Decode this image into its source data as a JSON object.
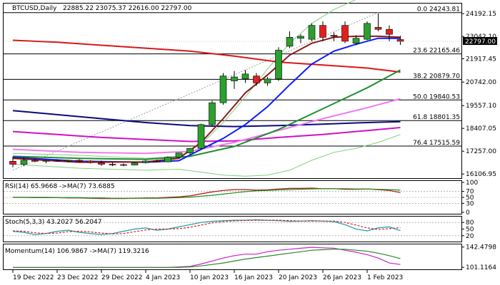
{
  "colors": {
    "frame": "#000000",
    "bull": "#2ca02c",
    "bear": "#e02020",
    "blue_ma": "#0a1aff",
    "red_ma": "#d81818",
    "green_ma": "#1f8f2f",
    "navy_ma": "#0a0a7a",
    "magenta_ma": "#d010c8",
    "pink_ma": "#f07af0",
    "brown_ma": "#8a1a1a",
    "band": "#7fcf7f",
    "fib": "#000000",
    "rsi": "#b01010",
    "rsi_ma": "#1c8c1c",
    "stoch_k": "#1a9aa8",
    "stoch_d": "#d02020",
    "mom": "#d020c8",
    "mom_ma": "#2a8a2a"
  },
  "chart_data": [
    {
      "type": "candlestick",
      "title": "BTCUSD,Daily",
      "ohlc_header": "22885.22 23075.37 22616.00 22797.00",
      "last_price_label": "22797.00",
      "ylim": [
        15900,
        24700
      ],
      "yticks": [
        "24192.15",
        "23042.10",
        "21917.45",
        "20742.00",
        "19557.10",
        "18407.05",
        "17257.00",
        "16106.95"
      ],
      "ytick_values": [
        24192.15,
        23042.1,
        21917.45,
        20742.0,
        19557.1,
        18407.05,
        17257.0,
        16106.95
      ],
      "xlabels": [
        "19 Dec 2022",
        "23 Dec 2022",
        "29 Dec 2022",
        "4 Jan 2023",
        "10 Jan 2023",
        "16 Jan 2023",
        "20 Jan 2023",
        "26 Jan 2023",
        "1 Feb 2023"
      ],
      "xlabel_bars": [
        0,
        4,
        8,
        12,
        16,
        20,
        24,
        28,
        32
      ],
      "candles": [
        {
          "o": 16750,
          "h": 16980,
          "l": 16450,
          "c": 16600
        },
        {
          "o": 16600,
          "h": 16950,
          "l": 16500,
          "c": 16800
        },
        {
          "o": 16800,
          "h": 16880,
          "l": 16700,
          "c": 16750
        },
        {
          "o": 16750,
          "h": 16830,
          "l": 16650,
          "c": 16790
        },
        {
          "o": 16790,
          "h": 16850,
          "l": 16720,
          "c": 16760
        },
        {
          "o": 16760,
          "h": 16820,
          "l": 16700,
          "c": 16800
        },
        {
          "o": 16800,
          "h": 16850,
          "l": 16720,
          "c": 16760
        },
        {
          "o": 16760,
          "h": 16800,
          "l": 16640,
          "c": 16680
        },
        {
          "o": 16680,
          "h": 16780,
          "l": 16520,
          "c": 16600
        },
        {
          "o": 16600,
          "h": 16700,
          "l": 16500,
          "c": 16580
        },
        {
          "o": 16580,
          "h": 16650,
          "l": 16500,
          "c": 16560
        },
        {
          "o": 16560,
          "h": 16720,
          "l": 16540,
          "c": 16680
        },
        {
          "o": 16680,
          "h": 16820,
          "l": 16640,
          "c": 16760
        },
        {
          "o": 16760,
          "h": 16830,
          "l": 16700,
          "c": 16720
        },
        {
          "o": 16720,
          "h": 17000,
          "l": 16700,
          "c": 16950
        },
        {
          "o": 16950,
          "h": 17180,
          "l": 16900,
          "c": 17170
        },
        {
          "o": 17170,
          "h": 17420,
          "l": 17100,
          "c": 17400
        },
        {
          "o": 17400,
          "h": 18650,
          "l": 17350,
          "c": 18600
        },
        {
          "o": 18600,
          "h": 19800,
          "l": 18500,
          "c": 19700
        },
        {
          "o": 19700,
          "h": 21200,
          "l": 19600,
          "c": 21050
        },
        {
          "o": 20800,
          "h": 21300,
          "l": 20400,
          "c": 21000
        },
        {
          "o": 20900,
          "h": 21350,
          "l": 20700,
          "c": 21150
        },
        {
          "o": 21050,
          "h": 21200,
          "l": 20550,
          "c": 20700
        },
        {
          "o": 20700,
          "h": 21000,
          "l": 20550,
          "c": 20900
        },
        {
          "o": 20900,
          "h": 22500,
          "l": 20800,
          "c": 22350
        },
        {
          "o": 22550,
          "h": 23300,
          "l": 22450,
          "c": 23000
        },
        {
          "o": 22950,
          "h": 23150,
          "l": 22700,
          "c": 23050
        },
        {
          "o": 22900,
          "h": 23700,
          "l": 22800,
          "c": 23600
        },
        {
          "o": 23600,
          "h": 23800,
          "l": 22800,
          "c": 23000
        },
        {
          "o": 23100,
          "h": 23250,
          "l": 22800,
          "c": 23050
        },
        {
          "o": 23600,
          "h": 23800,
          "l": 22700,
          "c": 22800
        },
        {
          "o": 22700,
          "h": 23100,
          "l": 22600,
          "c": 22950
        },
        {
          "o": 22900,
          "h": 23800,
          "l": 22850,
          "c": 23700
        },
        {
          "o": 23500,
          "h": 24200,
          "l": 23300,
          "c": 23400
        },
        {
          "o": 23400,
          "h": 23600,
          "l": 22800,
          "c": 23150
        },
        {
          "o": 22885.22,
          "h": 23075.37,
          "l": 22616.0,
          "c": 22797.0
        }
      ],
      "fib_levels": [
        {
          "label": "0.0 24243.81",
          "value": 24243.81
        },
        {
          "label": "23.6 22165.46",
          "value": 22165.46
        },
        {
          "label": "38.2 20879.70",
          "value": 20879.7
        },
        {
          "label": "50.0 19840.53",
          "value": 19840.53
        },
        {
          "label": "61.8 18801.35",
          "value": 18801.35
        },
        {
          "label": "76.4 17515.59",
          "value": 17515.59
        }
      ],
      "trendline": {
        "from": [
          0,
          16300
        ],
        "to": [
          33,
          24243.81
        ]
      },
      "moving_averages": [
        {
          "color_key": "red_ma",
          "points": [
            [
              0,
              22850
            ],
            [
              4,
              22750
            ],
            [
              8,
              22600
            ],
            [
              12,
              22450
            ],
            [
              16,
              22300
            ],
            [
              20,
              22050
            ],
            [
              24,
              21750
            ],
            [
              28,
              21600
            ],
            [
              32,
              21450
            ],
            [
              35,
              21250
            ]
          ]
        },
        {
          "color_key": "navy_ma",
          "points": [
            [
              0,
              19300
            ],
            [
              4,
              19100
            ],
            [
              8,
              18900
            ],
            [
              12,
              18700
            ],
            [
              16,
              18550
            ],
            [
              20,
              18500
            ],
            [
              24,
              18550
            ],
            [
              28,
              18620
            ],
            [
              32,
              18700
            ],
            [
              35,
              18750
            ]
          ]
        },
        {
          "color_key": "magenta_ma",
          "points": [
            [
              0,
              18250
            ],
            [
              4,
              18100
            ],
            [
              8,
              17950
            ],
            [
              12,
              17850
            ],
            [
              16,
              17750
            ],
            [
              20,
              17780
            ],
            [
              24,
              17950
            ],
            [
              28,
              18100
            ],
            [
              32,
              18300
            ],
            [
              35,
              18450
            ]
          ]
        },
        {
          "color_key": "pink_ma",
          "points": [
            [
              0,
              17350
            ],
            [
              6,
              17200
            ],
            [
              12,
              17150
            ],
            [
              16,
              17250
            ],
            [
              20,
              17700
            ],
            [
              24,
              18300
            ],
            [
              28,
              18900
            ],
            [
              32,
              19450
            ],
            [
              35,
              19900
            ]
          ]
        },
        {
          "color_key": "green_ma",
          "points": [
            [
              0,
              17000
            ],
            [
              6,
              16900
            ],
            [
              12,
              16850
            ],
            [
              16,
              17000
            ],
            [
              20,
              17500
            ],
            [
              24,
              18350
            ],
            [
              28,
              19400
            ],
            [
              32,
              20450
            ],
            [
              35,
              21350
            ]
          ]
        },
        {
          "color_key": "blue_ma",
          "points": [
            [
              0,
              16950
            ],
            [
              6,
              16750
            ],
            [
              12,
              16700
            ],
            [
              15,
              16780
            ],
            [
              17,
              17350
            ],
            [
              19,
              17900
            ],
            [
              21,
              18600
            ],
            [
              23,
              19500
            ],
            [
              25,
              20600
            ],
            [
              27,
              21650
            ],
            [
              29,
              22300
            ],
            [
              31,
              22650
            ],
            [
              33,
              22950
            ],
            [
              35,
              22950
            ]
          ]
        },
        {
          "color_key": "brown_ma",
          "points": [
            [
              0,
              16900
            ],
            [
              6,
              16700
            ],
            [
              12,
              16720
            ],
            [
              15,
              16900
            ],
            [
              17,
              17700
            ],
            [
              19,
              18900
            ],
            [
              21,
              20200
            ],
            [
              23,
              21100
            ],
            [
              25,
              22100
            ],
            [
              27,
              22700
            ],
            [
              29,
              23000
            ],
            [
              31,
              23050
            ],
            [
              33,
              23050
            ],
            [
              35,
              23000
            ]
          ]
        }
      ],
      "bands": [
        {
          "color_key": "band",
          "points": [
            [
              0,
              17150
            ],
            [
              6,
              17050
            ],
            [
              12,
              16900
            ],
            [
              15,
              17000
            ],
            [
              17,
              17600
            ],
            [
              19,
              18700
            ],
            [
              21,
              20000
            ],
            [
              23,
              21400
            ],
            [
              25,
              22700
            ],
            [
              27,
              23700
            ],
            [
              29,
              24400
            ],
            [
              31,
              24900
            ],
            [
              33,
              25300
            ],
            [
              35,
              25500
            ]
          ]
        },
        {
          "color_key": "band",
          "points": [
            [
              0,
              16600
            ],
            [
              6,
              16400
            ],
            [
              12,
              16300
            ],
            [
              15,
              16350
            ],
            [
              17,
              16200
            ],
            [
              19,
              16050
            ],
            [
              21,
              16000
            ],
            [
              23,
              16050
            ],
            [
              25,
              16300
            ],
            [
              27,
              16800
            ],
            [
              29,
              17200
            ],
            [
              31,
              17400
            ],
            [
              33,
              17700
            ],
            [
              35,
              18100
            ]
          ]
        }
      ]
    },
    {
      "type": "line",
      "title": "RSI(14) 65.9668 ->MA(7) 73.6885",
      "ylim": [
        0,
        100
      ],
      "yticks": [
        "100",
        "70",
        "50",
        "30",
        "0"
      ],
      "ytick_values": [
        100,
        70,
        50,
        30,
        0
      ],
      "levels": [
        70,
        50,
        30
      ],
      "series": [
        {
          "color_key": "rsi",
          "values": [
            50,
            50,
            49,
            49,
            49,
            48,
            48,
            47,
            46,
            46,
            46,
            47,
            48,
            48,
            50,
            52,
            55,
            62,
            68,
            73,
            76,
            76,
            74,
            75,
            78,
            80,
            80,
            81,
            79,
            79,
            77,
            77,
            78,
            76,
            73,
            66
          ]
        },
        {
          "color_key": "rsi_ma",
          "values": [
            50,
            50,
            50,
            50,
            49,
            49,
            49,
            48,
            48,
            47,
            47,
            47,
            47,
            47,
            48,
            49,
            51,
            54,
            57,
            61,
            65,
            69,
            72,
            73,
            75,
            76,
            77,
            78,
            79,
            79,
            79,
            78,
            78,
            77,
            76,
            74
          ]
        }
      ]
    },
    {
      "type": "line",
      "title": "Stoch(5,3,3) 43.2027 56.2047",
      "ylim": [
        0,
        100
      ],
      "yticks": [
        "80",
        "50",
        "20"
      ],
      "ytick_values": [
        80,
        50,
        20
      ],
      "levels": [
        80,
        20
      ],
      "series": [
        {
          "color_key": "stoch_k",
          "values": [
            40,
            35,
            25,
            30,
            40,
            45,
            35,
            30,
            25,
            30,
            40,
            50,
            55,
            45,
            50,
            60,
            70,
            80,
            85,
            88,
            90,
            90,
            92,
            90,
            88,
            85,
            86,
            88,
            86,
            84,
            70,
            50,
            42,
            55,
            60,
            43
          ]
        },
        {
          "color_key": "stoch_d",
          "values": [
            42,
            40,
            33,
            30,
            32,
            38,
            40,
            37,
            32,
            28,
            30,
            38,
            46,
            50,
            50,
            52,
            58,
            68,
            78,
            84,
            87,
            89,
            90,
            90,
            90,
            88,
            86,
            86,
            86,
            86,
            80,
            68,
            55,
            48,
            52,
            56
          ]
        }
      ]
    },
    {
      "type": "line",
      "title": "Momentum(14) 106.9867 ->MA(7) 119.3216",
      "ylim": [
        100,
        145
      ],
      "yticks": [
        "142.4798",
        "101.1164"
      ],
      "ytick_values": [
        142.4798,
        101.1164
      ],
      "series": [
        {
          "color_key": "mom",
          "values": [
            101,
            101,
            101,
            101,
            101,
            101,
            101,
            101,
            101,
            101,
            101,
            101,
            101,
            101,
            101,
            102,
            103,
            108,
            114,
            120,
            125,
            128,
            128,
            133,
            136,
            138,
            140,
            142,
            141,
            140,
            136,
            132,
            127,
            120,
            110,
            107
          ]
        },
        {
          "color_key": "mom_ma",
          "values": [
            101,
            101,
            101,
            101,
            101,
            101,
            101,
            101,
            101,
            101,
            101,
            101,
            101,
            101,
            101,
            101,
            102,
            104,
            107,
            110,
            114,
            118,
            121,
            124,
            127,
            130,
            133,
            136,
            137,
            138,
            138,
            136,
            134,
            130,
            125,
            119
          ]
        }
      ]
    }
  ]
}
